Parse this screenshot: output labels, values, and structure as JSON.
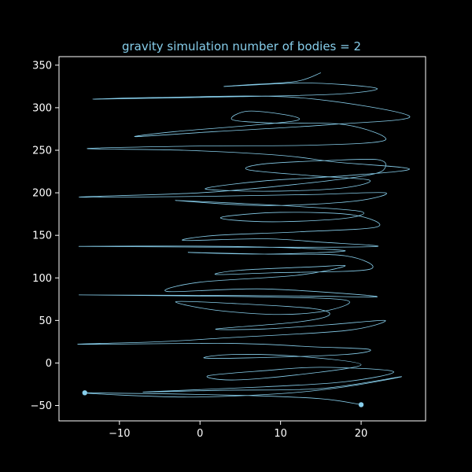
{
  "chart_data": {
    "type": "line",
    "title": "gravity simulation number of bodies = 2",
    "xlabel": "",
    "ylabel": "",
    "xlim": [
      -17.5,
      28.0
    ],
    "ylim": [
      -68,
      360
    ],
    "x_ticks": [
      -10,
      0,
      10,
      20
    ],
    "y_ticks": [
      -50,
      0,
      50,
      100,
      150,
      200,
      250,
      300,
      350
    ],
    "grid": false,
    "background": "#000000",
    "axis_color": "#ffffff",
    "series_color": "#87ceeb",
    "series": [
      {
        "bodies": 2,
        "points": [
          [
            15.0,
            341
          ],
          [
            12,
            331
          ],
          [
            6,
            327
          ],
          [
            3.2,
            325
          ],
          [
            12,
            329
          ],
          [
            18,
            327
          ],
          [
            22,
            322
          ],
          [
            17,
            316
          ],
          [
            5,
            313
          ],
          [
            -13,
            310
          ],
          [
            -5,
            312
          ],
          [
            12,
            312
          ],
          [
            26,
            290
          ],
          [
            16,
            280
          ],
          [
            2,
            272
          ],
          [
            -8,
            266
          ],
          [
            -3,
            272
          ],
          [
            6,
            279
          ],
          [
            12,
            285
          ],
          [
            11,
            291
          ],
          [
            6,
            296
          ],
          [
            4,
            286
          ],
          [
            9,
            282
          ],
          [
            18,
            280
          ],
          [
            23,
            262
          ],
          [
            14,
            256
          ],
          [
            0,
            255
          ],
          [
            -14,
            252
          ],
          [
            -2,
            250
          ],
          [
            10,
            244
          ],
          [
            17,
            236
          ],
          [
            26,
            228
          ],
          [
            18,
            220
          ],
          [
            8,
            214
          ],
          [
            1,
            206
          ],
          [
            2.5,
            203
          ],
          [
            10,
            202
          ],
          [
            18,
            206
          ],
          [
            21,
            215
          ],
          [
            14,
            220
          ],
          [
            6,
            227
          ],
          [
            8,
            234
          ],
          [
            16,
            238
          ],
          [
            22,
            239
          ],
          [
            23,
            230
          ],
          [
            21,
            221
          ],
          [
            12,
            210
          ],
          [
            0,
            200
          ],
          [
            -15,
            195
          ],
          [
            2,
            196
          ],
          [
            14,
            198
          ],
          [
            23,
            200
          ],
          [
            19,
            190
          ],
          [
            8,
            185
          ],
          [
            -3,
            191
          ],
          [
            4,
            188
          ],
          [
            12,
            184
          ],
          [
            20,
            178
          ],
          [
            18,
            170
          ],
          [
            10,
            166
          ],
          [
            4,
            168
          ],
          [
            3,
            172
          ],
          [
            10,
            177
          ],
          [
            19,
            174
          ],
          [
            22,
            160
          ],
          [
            12,
            154
          ],
          [
            2,
            150
          ],
          [
            -2,
            144
          ],
          [
            8,
            146
          ],
          [
            15,
            142
          ],
          [
            22,
            137
          ],
          [
            9,
            136
          ],
          [
            -15,
            137
          ],
          [
            4,
            137
          ],
          [
            18,
            132
          ],
          [
            8,
            128
          ],
          [
            -1.5,
            130
          ],
          [
            8,
            128
          ],
          [
            18,
            126
          ],
          [
            21,
            110
          ],
          [
            9,
            106
          ],
          [
            2,
            104
          ],
          [
            5,
            109
          ],
          [
            14,
            113
          ],
          [
            18,
            114
          ],
          [
            12,
            103
          ],
          [
            0,
            95
          ],
          [
            -4,
            84
          ],
          [
            8,
            87
          ],
          [
            22,
            78
          ],
          [
            10,
            79
          ],
          [
            -15,
            80
          ],
          [
            6,
            78
          ],
          [
            18,
            74
          ],
          [
            16,
            62
          ],
          [
            10,
            57
          ],
          [
            2,
            62
          ],
          [
            -3,
            72
          ],
          [
            4,
            70
          ],
          [
            14,
            64
          ],
          [
            16,
            56
          ],
          [
            12,
            48
          ],
          [
            2,
            40
          ],
          [
            8,
            40
          ],
          [
            16,
            45
          ],
          [
            23,
            50
          ],
          [
            18,
            38
          ],
          [
            4,
            30
          ],
          [
            -5,
            25
          ],
          [
            -15,
            22
          ],
          [
            4,
            23
          ],
          [
            14,
            19
          ],
          [
            21,
            16
          ],
          [
            18,
            10
          ],
          [
            6,
            6
          ],
          [
            0.5,
            6
          ],
          [
            4,
            10
          ],
          [
            12,
            8
          ],
          [
            20,
            -2
          ],
          [
            12,
            -14
          ],
          [
            4,
            -20
          ],
          [
            1,
            -15
          ],
          [
            8,
            -9
          ],
          [
            15,
            -5
          ],
          [
            24,
            -10
          ],
          [
            18,
            -22
          ],
          [
            8,
            -28
          ],
          [
            -7,
            -34
          ],
          [
            3,
            -32
          ],
          [
            15,
            -30
          ],
          [
            25,
            -16
          ],
          [
            18,
            -28
          ],
          [
            10,
            -36
          ],
          [
            -2,
            -40
          ],
          [
            -14.3,
            -35
          ],
          [
            5,
            -38
          ],
          [
            15,
            -42
          ],
          [
            20.0,
            -49
          ]
        ]
      }
    ],
    "bodies_final": [
      {
        "x": -14.3,
        "y": -35
      },
      {
        "x": 20.0,
        "y": -49
      }
    ]
  }
}
